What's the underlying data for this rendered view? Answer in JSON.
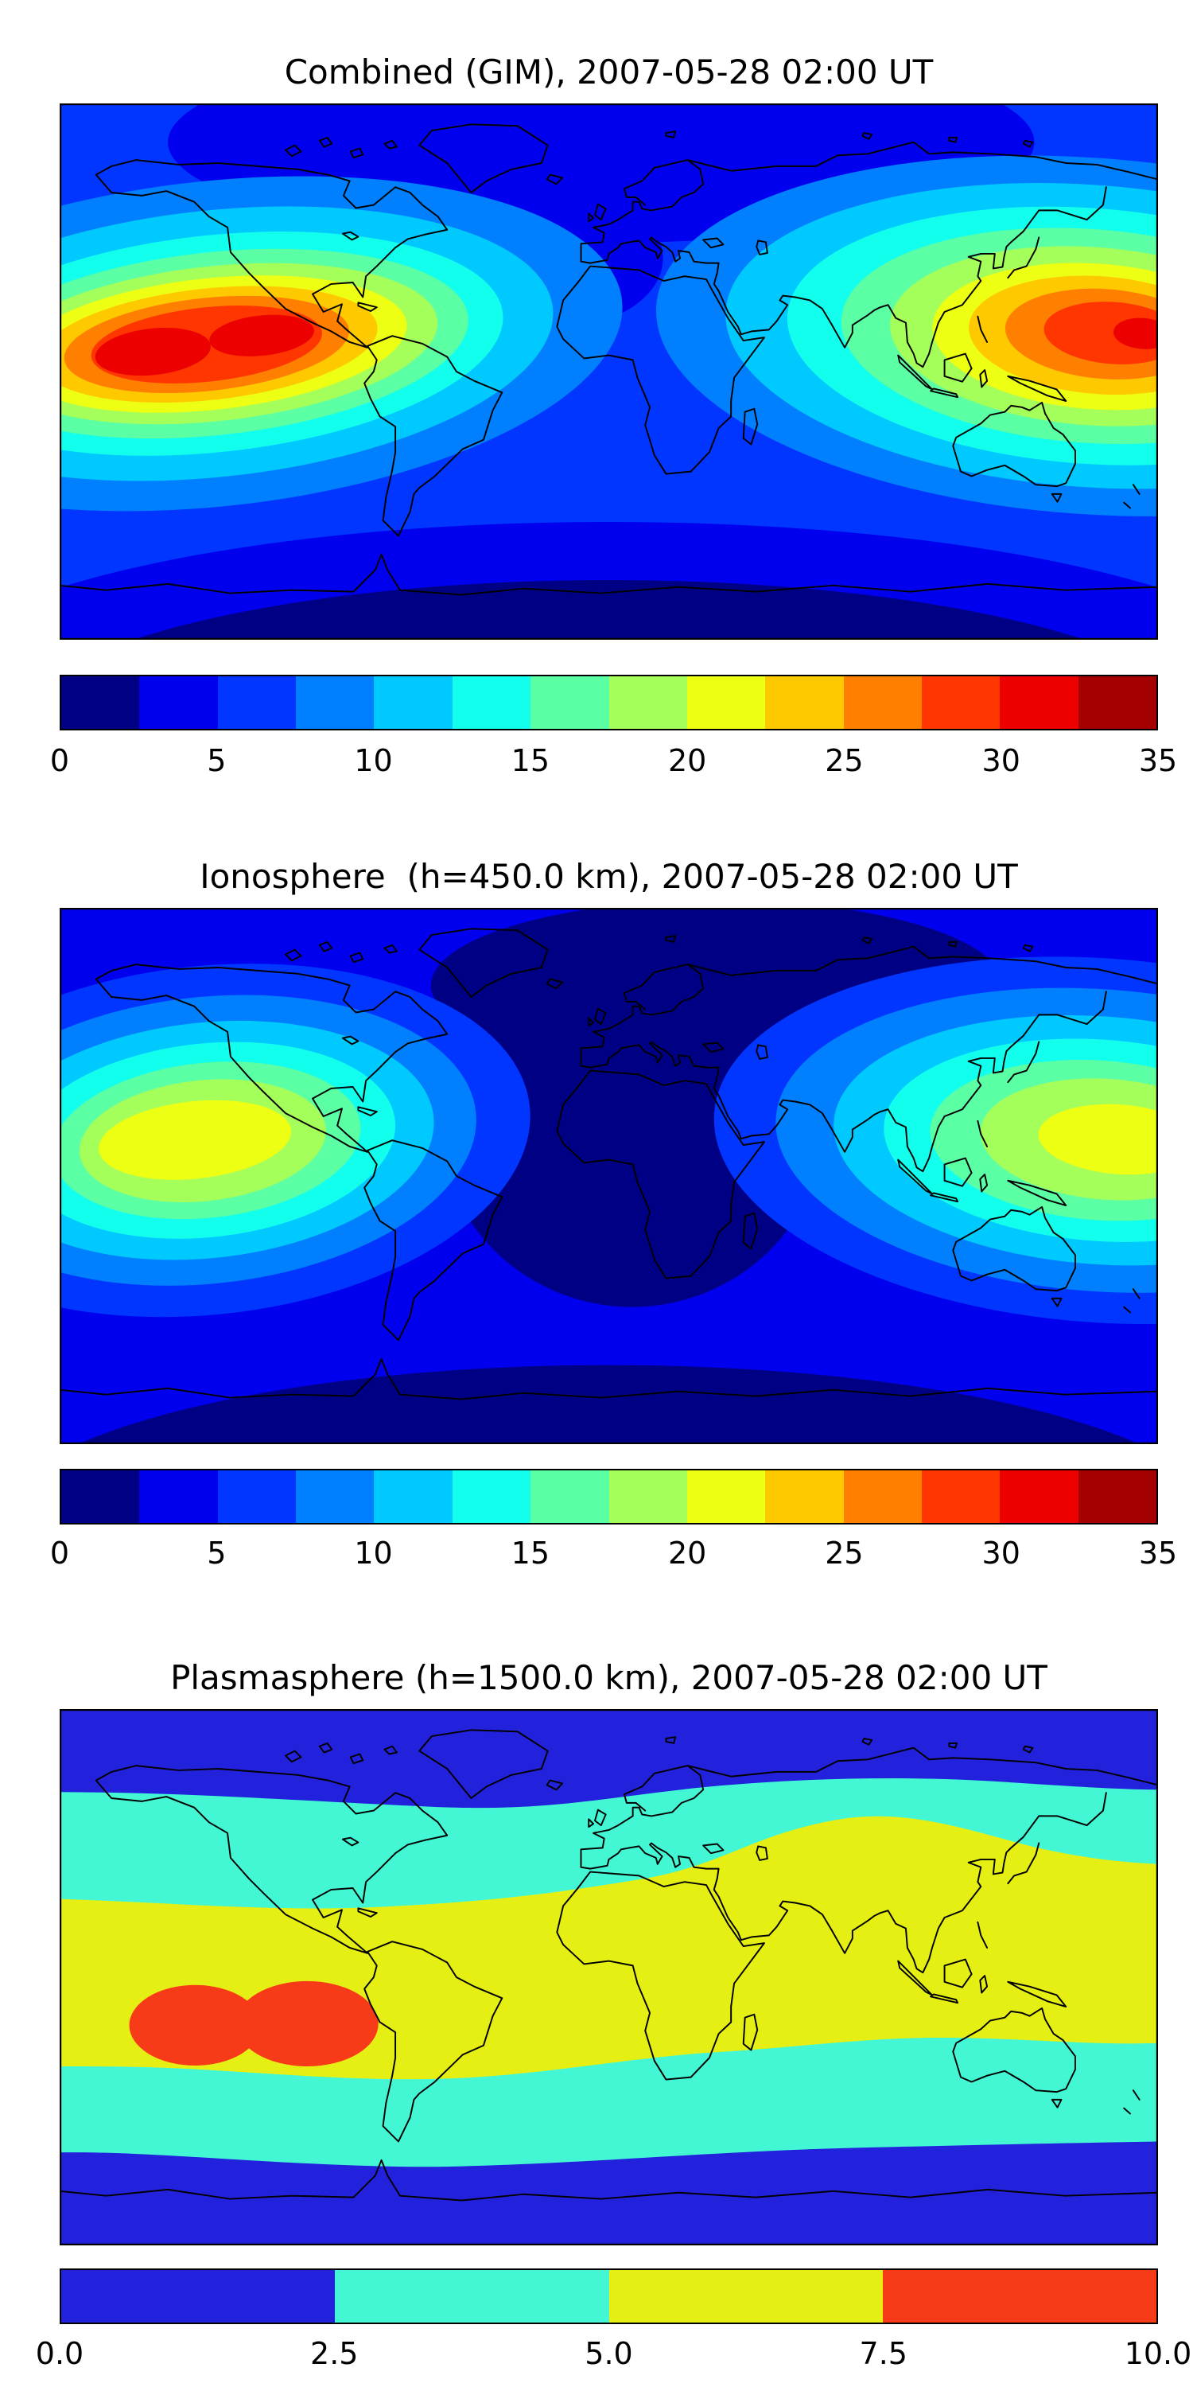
{
  "style": {
    "background": "#ffffff",
    "coastline_color": "#000000",
    "text_color": "#000000"
  },
  "figure": {
    "panels": 3,
    "layout": "three stacked global maps, each with title above and horizontal colorbar below"
  },
  "chart_data": [
    {
      "type": "heatmap",
      "subtype": "filled-contour world map",
      "title": "Combined (GIM), 2007-05-28 02:00 UT",
      "projection": "equirectangular",
      "lon_range": [
        -180,
        180
      ],
      "lat_range": [
        -90,
        90
      ],
      "grid": false,
      "colorbar": {
        "orientation": "horizontal",
        "min": 0,
        "max": 35,
        "level_step": 2.5,
        "ticks": [
          "0",
          "5",
          "10",
          "15",
          "20",
          "25",
          "30",
          "35"
        ],
        "colors": [
          "#000084",
          "#0000ee",
          "#0036ff",
          "#0080ff",
          "#00c9ff",
          "#12ffed",
          "#5bffa4",
          "#a4ff5b",
          "#edff12",
          "#ffc900",
          "#ff8000",
          "#ff3600",
          "#ed0000",
          "#a40000"
        ]
      },
      "features": {
        "background_value_range": "5-7.5",
        "maxima": [
          {
            "region": "central/eastern Pacific near 10N (equatorial anomaly)",
            "approx_lon": -135,
            "approx_lat": 10,
            "approx_value": "30-35"
          },
          {
            "region": "Southeast Asia / far west Pacific near 10-15N",
            "approx_lon": 165,
            "approx_lat": 12,
            "approx_value": "27.5-32.5"
          }
        ],
        "minima": [
          {
            "region": "southern high latitudes",
            "approx_value": "0-2.5"
          },
          {
            "region": "Arctic and North Atlantic sector",
            "approx_value": "2.5-5"
          }
        ]
      }
    },
    {
      "type": "heatmap",
      "subtype": "filled-contour world map",
      "title": "Ionosphere  (h=450.0 km), 2007-05-28 02:00 UT",
      "projection": "equirectangular",
      "lon_range": [
        -180,
        180
      ],
      "lat_range": [
        -90,
        90
      ],
      "grid": false,
      "colorbar": {
        "orientation": "horizontal",
        "min": 0,
        "max": 35,
        "level_step": 2.5,
        "ticks": [
          "0",
          "5",
          "10",
          "15",
          "20",
          "25",
          "30",
          "35"
        ],
        "colors": [
          "#000084",
          "#0000ee",
          "#0036ff",
          "#0080ff",
          "#00c9ff",
          "#12ffed",
          "#5bffa4",
          "#a4ff5b",
          "#edff12",
          "#ffc900",
          "#ff8000",
          "#ff3600",
          "#ed0000",
          "#a40000"
        ]
      },
      "features": {
        "background_value_range": "2.5-5",
        "maxima": [
          {
            "region": "central/eastern Pacific near 10N",
            "approx_lon": -135,
            "approx_lat": 10,
            "approx_value": "20-22.5"
          },
          {
            "region": "Southeast Asia / far west Pacific near 10-15N",
            "approx_lon": 165,
            "approx_lat": 12,
            "approx_value": "17.5-22.5"
          }
        ],
        "minima": [
          {
            "region": "Europe / Africa / central Atlantic night sector",
            "approx_value": "0-2.5"
          }
        ]
      }
    },
    {
      "type": "heatmap",
      "subtype": "filled-contour world map (4 discrete levels)",
      "title": "Plasmasphere (h=1500.0 km), 2007-05-28 02:00 UT",
      "projection": "equirectangular",
      "lon_range": [
        -180,
        180
      ],
      "lat_range": [
        -90,
        90
      ],
      "grid": false,
      "colorbar": {
        "orientation": "horizontal",
        "min": 0,
        "max": 10,
        "level_step": 2.5,
        "ticks": [
          "0.0",
          "2.5",
          "5.0",
          "7.5",
          "10.0"
        ],
        "colors": [
          "#2222dd",
          "#44f7d4",
          "#e6ef13",
          "#f73a18"
        ]
      },
      "features": {
        "bands": [
          {
            "value_range": "0-2.5",
            "color_name": "blue",
            "region": "high latitudes (north and south)"
          },
          {
            "value_range": "2.5-5",
            "color_name": "cyan",
            "region": "mid-latitude transition band circling globe"
          },
          {
            "value_range": "5-7.5",
            "color_name": "yellow",
            "region": "low-latitude equatorial band, bulging north over Southeast Asia"
          },
          {
            "value_range": "7.5-10",
            "color_name": "red",
            "region": "two-lobed peak over central Pacific south of equator"
          }
        ]
      }
    }
  ]
}
